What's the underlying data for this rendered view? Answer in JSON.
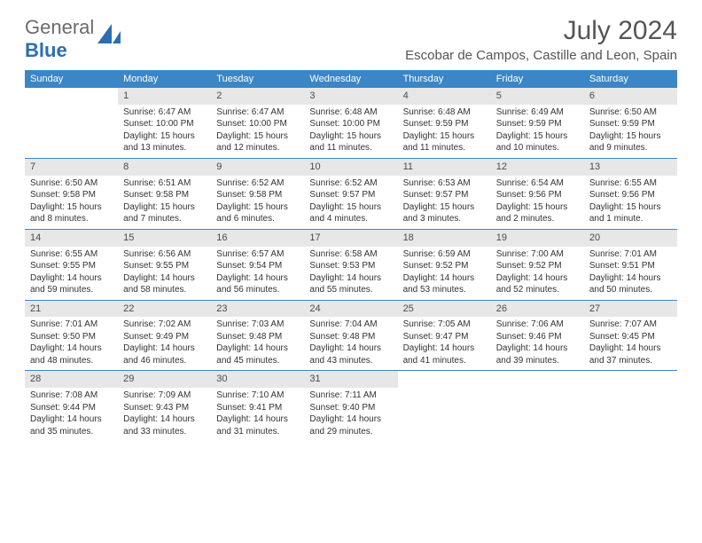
{
  "logo": {
    "text_gray": "General",
    "text_blue": "Blue"
  },
  "title": "July 2024",
  "location": "Escobar de Campos, Castille and Leon, Spain",
  "colors": {
    "header_bg": "#3b86c6",
    "header_text": "#ffffff",
    "daynum_bg": "#e7e7e7",
    "border": "#3b86c6",
    "text": "#333333"
  },
  "day_names": [
    "Sunday",
    "Monday",
    "Tuesday",
    "Wednesday",
    "Thursday",
    "Friday",
    "Saturday"
  ],
  "weeks": [
    [
      {
        "n": "",
        "sr": "",
        "ss": "",
        "dl": ""
      },
      {
        "n": "1",
        "sr": "Sunrise: 6:47 AM",
        "ss": "Sunset: 10:00 PM",
        "dl": "Daylight: 15 hours and 13 minutes."
      },
      {
        "n": "2",
        "sr": "Sunrise: 6:47 AM",
        "ss": "Sunset: 10:00 PM",
        "dl": "Daylight: 15 hours and 12 minutes."
      },
      {
        "n": "3",
        "sr": "Sunrise: 6:48 AM",
        "ss": "Sunset: 10:00 PM",
        "dl": "Daylight: 15 hours and 11 minutes."
      },
      {
        "n": "4",
        "sr": "Sunrise: 6:48 AM",
        "ss": "Sunset: 9:59 PM",
        "dl": "Daylight: 15 hours and 11 minutes."
      },
      {
        "n": "5",
        "sr": "Sunrise: 6:49 AM",
        "ss": "Sunset: 9:59 PM",
        "dl": "Daylight: 15 hours and 10 minutes."
      },
      {
        "n": "6",
        "sr": "Sunrise: 6:50 AM",
        "ss": "Sunset: 9:59 PM",
        "dl": "Daylight: 15 hours and 9 minutes."
      }
    ],
    [
      {
        "n": "7",
        "sr": "Sunrise: 6:50 AM",
        "ss": "Sunset: 9:58 PM",
        "dl": "Daylight: 15 hours and 8 minutes."
      },
      {
        "n": "8",
        "sr": "Sunrise: 6:51 AM",
        "ss": "Sunset: 9:58 PM",
        "dl": "Daylight: 15 hours and 7 minutes."
      },
      {
        "n": "9",
        "sr": "Sunrise: 6:52 AM",
        "ss": "Sunset: 9:58 PM",
        "dl": "Daylight: 15 hours and 6 minutes."
      },
      {
        "n": "10",
        "sr": "Sunrise: 6:52 AM",
        "ss": "Sunset: 9:57 PM",
        "dl": "Daylight: 15 hours and 4 minutes."
      },
      {
        "n": "11",
        "sr": "Sunrise: 6:53 AM",
        "ss": "Sunset: 9:57 PM",
        "dl": "Daylight: 15 hours and 3 minutes."
      },
      {
        "n": "12",
        "sr": "Sunrise: 6:54 AM",
        "ss": "Sunset: 9:56 PM",
        "dl": "Daylight: 15 hours and 2 minutes."
      },
      {
        "n": "13",
        "sr": "Sunrise: 6:55 AM",
        "ss": "Sunset: 9:56 PM",
        "dl": "Daylight: 15 hours and 1 minute."
      }
    ],
    [
      {
        "n": "14",
        "sr": "Sunrise: 6:55 AM",
        "ss": "Sunset: 9:55 PM",
        "dl": "Daylight: 14 hours and 59 minutes."
      },
      {
        "n": "15",
        "sr": "Sunrise: 6:56 AM",
        "ss": "Sunset: 9:55 PM",
        "dl": "Daylight: 14 hours and 58 minutes."
      },
      {
        "n": "16",
        "sr": "Sunrise: 6:57 AM",
        "ss": "Sunset: 9:54 PM",
        "dl": "Daylight: 14 hours and 56 minutes."
      },
      {
        "n": "17",
        "sr": "Sunrise: 6:58 AM",
        "ss": "Sunset: 9:53 PM",
        "dl": "Daylight: 14 hours and 55 minutes."
      },
      {
        "n": "18",
        "sr": "Sunrise: 6:59 AM",
        "ss": "Sunset: 9:52 PM",
        "dl": "Daylight: 14 hours and 53 minutes."
      },
      {
        "n": "19",
        "sr": "Sunrise: 7:00 AM",
        "ss": "Sunset: 9:52 PM",
        "dl": "Daylight: 14 hours and 52 minutes."
      },
      {
        "n": "20",
        "sr": "Sunrise: 7:01 AM",
        "ss": "Sunset: 9:51 PM",
        "dl": "Daylight: 14 hours and 50 minutes."
      }
    ],
    [
      {
        "n": "21",
        "sr": "Sunrise: 7:01 AM",
        "ss": "Sunset: 9:50 PM",
        "dl": "Daylight: 14 hours and 48 minutes."
      },
      {
        "n": "22",
        "sr": "Sunrise: 7:02 AM",
        "ss": "Sunset: 9:49 PM",
        "dl": "Daylight: 14 hours and 46 minutes."
      },
      {
        "n": "23",
        "sr": "Sunrise: 7:03 AM",
        "ss": "Sunset: 9:48 PM",
        "dl": "Daylight: 14 hours and 45 minutes."
      },
      {
        "n": "24",
        "sr": "Sunrise: 7:04 AM",
        "ss": "Sunset: 9:48 PM",
        "dl": "Daylight: 14 hours and 43 minutes."
      },
      {
        "n": "25",
        "sr": "Sunrise: 7:05 AM",
        "ss": "Sunset: 9:47 PM",
        "dl": "Daylight: 14 hours and 41 minutes."
      },
      {
        "n": "26",
        "sr": "Sunrise: 7:06 AM",
        "ss": "Sunset: 9:46 PM",
        "dl": "Daylight: 14 hours and 39 minutes."
      },
      {
        "n": "27",
        "sr": "Sunrise: 7:07 AM",
        "ss": "Sunset: 9:45 PM",
        "dl": "Daylight: 14 hours and 37 minutes."
      }
    ],
    [
      {
        "n": "28",
        "sr": "Sunrise: 7:08 AM",
        "ss": "Sunset: 9:44 PM",
        "dl": "Daylight: 14 hours and 35 minutes."
      },
      {
        "n": "29",
        "sr": "Sunrise: 7:09 AM",
        "ss": "Sunset: 9:43 PM",
        "dl": "Daylight: 14 hours and 33 minutes."
      },
      {
        "n": "30",
        "sr": "Sunrise: 7:10 AM",
        "ss": "Sunset: 9:41 PM",
        "dl": "Daylight: 14 hours and 31 minutes."
      },
      {
        "n": "31",
        "sr": "Sunrise: 7:11 AM",
        "ss": "Sunset: 9:40 PM",
        "dl": "Daylight: 14 hours and 29 minutes."
      },
      {
        "n": "",
        "sr": "",
        "ss": "",
        "dl": ""
      },
      {
        "n": "",
        "sr": "",
        "ss": "",
        "dl": ""
      },
      {
        "n": "",
        "sr": "",
        "ss": "",
        "dl": ""
      }
    ]
  ]
}
